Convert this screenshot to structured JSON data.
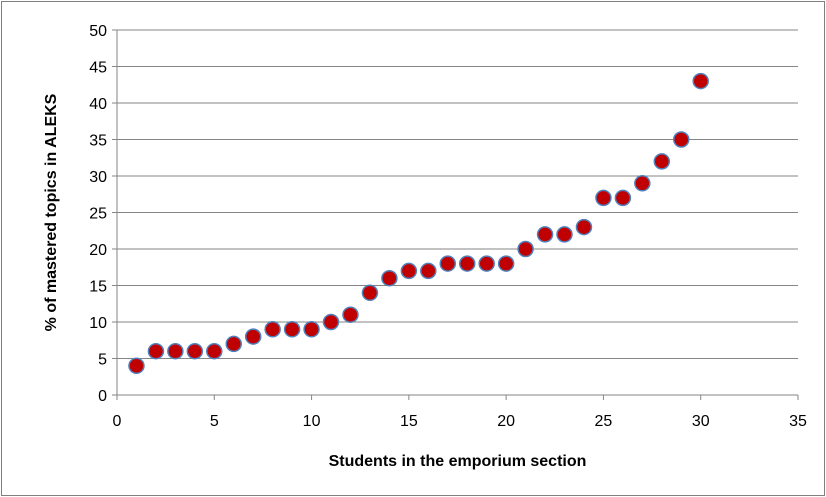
{
  "chart_data": {
    "type": "scatter",
    "xlabel": "Students in the emporium section",
    "ylabel": "% of mastered topics in ALEKS",
    "xlim": [
      0,
      35
    ],
    "ylim": [
      0,
      50
    ],
    "xticks": [
      0,
      5,
      10,
      15,
      20,
      25,
      30,
      35
    ],
    "yticks": [
      0,
      5,
      10,
      15,
      20,
      25,
      30,
      35,
      40,
      45,
      50
    ],
    "grid": "horizontal",
    "legend": "none",
    "series": [
      {
        "marker_color": "#C00000",
        "marker_edge_color": "#4F81BD",
        "points": [
          {
            "x": 1,
            "y": 4
          },
          {
            "x": 2,
            "y": 6
          },
          {
            "x": 3,
            "y": 6
          },
          {
            "x": 4,
            "y": 6
          },
          {
            "x": 5,
            "y": 6
          },
          {
            "x": 6,
            "y": 7
          },
          {
            "x": 7,
            "y": 8
          },
          {
            "x": 8,
            "y": 9
          },
          {
            "x": 9,
            "y": 9
          },
          {
            "x": 10,
            "y": 9
          },
          {
            "x": 11,
            "y": 10
          },
          {
            "x": 12,
            "y": 11
          },
          {
            "x": 13,
            "y": 14
          },
          {
            "x": 14,
            "y": 16
          },
          {
            "x": 15,
            "y": 17
          },
          {
            "x": 16,
            "y": 17
          },
          {
            "x": 17,
            "y": 18
          },
          {
            "x": 18,
            "y": 18
          },
          {
            "x": 19,
            "y": 18
          },
          {
            "x": 20,
            "y": 18
          },
          {
            "x": 21,
            "y": 20
          },
          {
            "x": 22,
            "y": 22
          },
          {
            "x": 23,
            "y": 22
          },
          {
            "x": 24,
            "y": 23
          },
          {
            "x": 25,
            "y": 27
          },
          {
            "x": 26,
            "y": 27
          },
          {
            "x": 27,
            "y": 29
          },
          {
            "x": 28,
            "y": 32
          },
          {
            "x": 29,
            "y": 35
          },
          {
            "x": 30,
            "y": 43
          }
        ]
      }
    ]
  }
}
